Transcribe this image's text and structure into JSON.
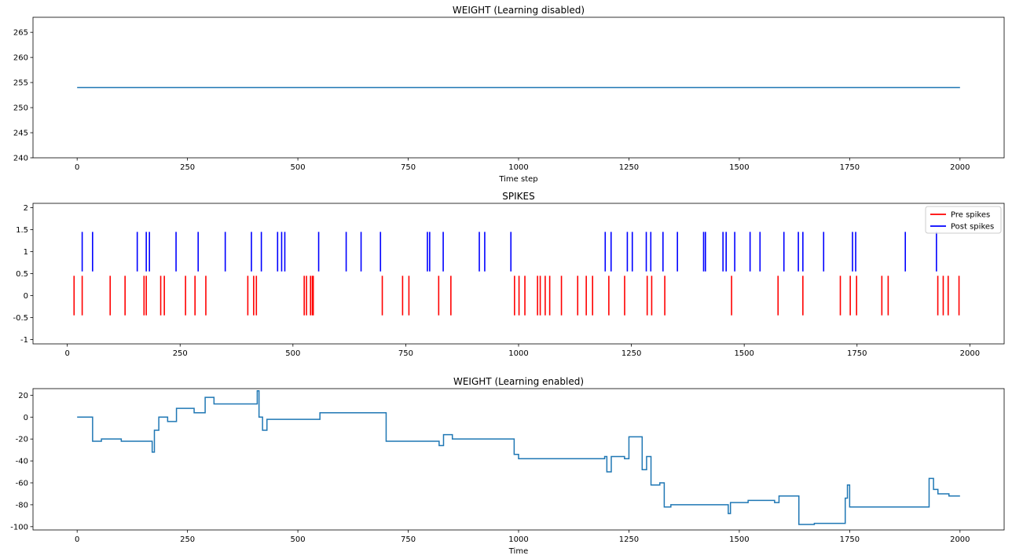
{
  "chart_data": [
    {
      "type": "line",
      "title": "WEIGHT (Learning disabled)",
      "xlabel": "Time step",
      "ylabel": "",
      "xlim": [
        -100,
        2100
      ],
      "ylim": [
        240,
        268
      ],
      "xticks": [
        0,
        250,
        500,
        750,
        1000,
        1250,
        1500,
        1750,
        2000
      ],
      "yticks": [
        240,
        245,
        250,
        255,
        260,
        265
      ],
      "grid": false,
      "series": [
        {
          "color": "#1f77b4",
          "step": false,
          "x": [
            0,
            2000
          ],
          "y": [
            254,
            254
          ]
        }
      ]
    },
    {
      "type": "scatter",
      "title": "SPIKES",
      "xlabel": "",
      "ylabel": "",
      "xlim": [
        -76,
        2076
      ],
      "ylim": [
        -1.1,
        2.1
      ],
      "xticks": [
        0,
        250,
        500,
        750,
        1000,
        1250,
        1500,
        1750,
        2000
      ],
      "yticks": [
        -1.0,
        -0.5,
        0.0,
        0.5,
        1.0,
        1.5,
        2.0
      ],
      "legend_position": "top-right",
      "grid": false,
      "series": [
        {
          "name": "Pre spikes",
          "color": "#ff0000",
          "marker": "vertical-line",
          "level": 0,
          "x": [
            15,
            33,
            95,
            128,
            170,
            175,
            207,
            215,
            262,
            283,
            307,
            400,
            413,
            419,
            525,
            530,
            539,
            543,
            545,
            698,
            743,
            757,
            823,
            850,
            991,
            1001,
            1014,
            1042,
            1048,
            1059,
            1069,
            1095,
            1131,
            1150,
            1164,
            1200,
            1235,
            1285,
            1295,
            1324,
            1472,
            1575,
            1630,
            1713,
            1735,
            1749,
            1805,
            1819,
            1929,
            1941,
            1952,
            1976
          ]
        },
        {
          "name": "Post spikes",
          "color": "#0000ff",
          "marker": "vertical-line",
          "level": 1,
          "x": [
            33,
            56,
            155,
            175,
            182,
            241,
            290,
            350,
            408,
            430,
            466,
            475,
            482,
            557,
            618,
            651,
            694,
            798,
            803,
            833,
            913,
            925,
            983,
            1192,
            1205,
            1241,
            1252,
            1283,
            1293,
            1320,
            1352,
            1410,
            1414,
            1453,
            1460,
            1479,
            1513,
            1535,
            1588,
            1620,
            1630,
            1676,
            1740,
            1747,
            1857,
            1926
          ]
        }
      ]
    },
    {
      "type": "line",
      "title": "WEIGHT (Learning enabled)",
      "xlabel": "Time",
      "ylabel": "",
      "xlim": [
        -100,
        2100
      ],
      "ylim": [
        -103,
        26
      ],
      "xticks": [
        0,
        250,
        500,
        750,
        1000,
        1250,
        1500,
        1750,
        2000
      ],
      "yticks": [
        -100,
        -80,
        -60,
        -40,
        -20,
        0,
        20
      ],
      "grid": false,
      "series": [
        {
          "color": "#1f77b4",
          "step": true,
          "x": [
            0,
            35,
            55,
            100,
            170,
            175,
            185,
            205,
            225,
            265,
            290,
            310,
            408,
            412,
            420,
            430,
            550,
            700,
            820,
            830,
            850,
            990,
            1000,
            1195,
            1200,
            1210,
            1240,
            1250,
            1280,
            1290,
            1300,
            1320,
            1330,
            1345,
            1475,
            1480,
            1520,
            1580,
            1590,
            1635,
            1670,
            1740,
            1745,
            1750,
            1930,
            1940,
            1950,
            1975,
            2000
          ],
          "y": [
            0,
            -22,
            -20,
            -22,
            -32,
            -12,
            0,
            -4,
            8,
            4,
            18,
            12,
            24,
            0,
            -12,
            -2,
            4,
            -22,
            -26,
            -16,
            -20,
            -34,
            -38,
            -36,
            -50,
            -36,
            -38,
            -18,
            -48,
            -36,
            -62,
            -60,
            -82,
            -80,
            -88,
            -78,
            -76,
            -78,
            -72,
            -98,
            -97,
            -74,
            -62,
            -82,
            -56,
            -66,
            -70,
            -72,
            -72
          ]
        }
      ]
    }
  ]
}
